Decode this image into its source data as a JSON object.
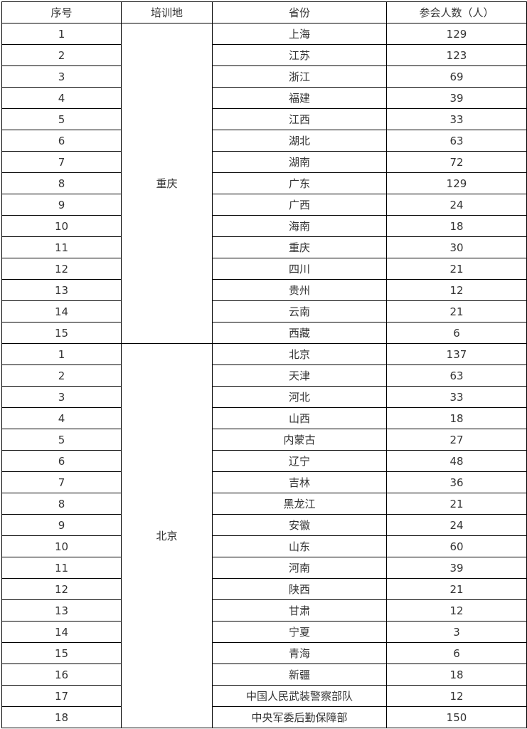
{
  "table": {
    "headers": [
      "序号",
      "培训地",
      "省份",
      "参会人数（人）"
    ],
    "groups": [
      {
        "location": "重庆",
        "rows": [
          [
            "1",
            "上海",
            "129"
          ],
          [
            "2",
            "江苏",
            "123"
          ],
          [
            "3",
            "浙江",
            "69"
          ],
          [
            "4",
            "福建",
            "39"
          ],
          [
            "5",
            "江西",
            "33"
          ],
          [
            "6",
            "湖北",
            "63"
          ],
          [
            "7",
            "湖南",
            "72"
          ],
          [
            "8",
            "广东",
            "129"
          ],
          [
            "9",
            "广西",
            "24"
          ],
          [
            "10",
            "海南",
            "18"
          ],
          [
            "11",
            "重庆",
            "30"
          ],
          [
            "12",
            "四川",
            "21"
          ],
          [
            "13",
            "贵州",
            "12"
          ],
          [
            "14",
            "云南",
            "21"
          ],
          [
            "15",
            "西藏",
            "6"
          ]
        ]
      },
      {
        "location": "北京",
        "rows": [
          [
            "1",
            "北京",
            "137"
          ],
          [
            "2",
            "天津",
            "63"
          ],
          [
            "3",
            "河北",
            "33"
          ],
          [
            "4",
            "山西",
            "18"
          ],
          [
            "5",
            "内蒙古",
            "27"
          ],
          [
            "6",
            "辽宁",
            "48"
          ],
          [
            "7",
            "吉林",
            "36"
          ],
          [
            "8",
            "黑龙江",
            "21"
          ],
          [
            "9",
            "安徽",
            "24"
          ],
          [
            "10",
            "山东",
            "60"
          ],
          [
            "11",
            "河南",
            "39"
          ],
          [
            "12",
            "陕西",
            "21"
          ],
          [
            "13",
            "甘肃",
            "12"
          ],
          [
            "14",
            "宁夏",
            "3"
          ],
          [
            "15",
            "青海",
            "6"
          ],
          [
            "16",
            "新疆",
            "18"
          ],
          [
            "17",
            "中国人民武装警察部队",
            "12"
          ],
          [
            "18",
            "中央军委后勤保障部",
            "150"
          ]
        ]
      }
    ]
  }
}
